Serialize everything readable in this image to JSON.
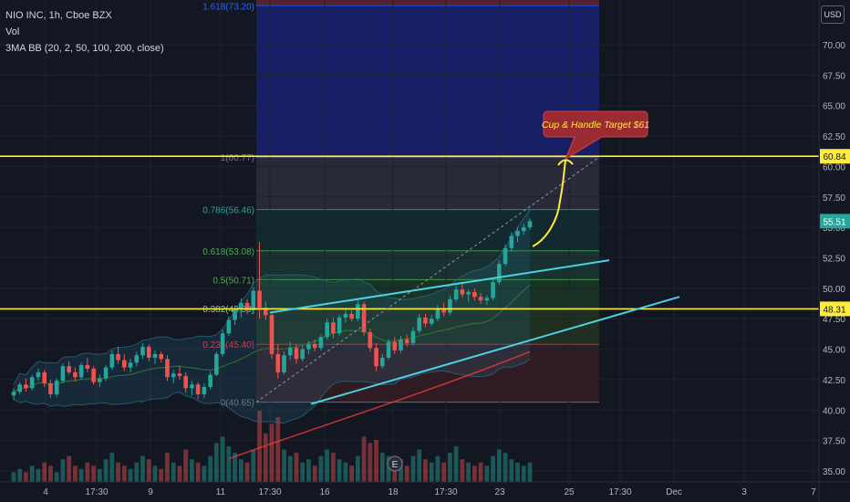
{
  "chart_data": {
    "type": "candlestick",
    "title": "NIO INC, 1h, Cboe BZX",
    "indicators": [
      "Vol",
      "3MA BB (20, 2, 50, 100, 200, close)"
    ],
    "currency": "USD",
    "y_axis": {
      "range": [
        35.0,
        72.5
      ],
      "ticks": [
        "70.00",
        "67.50",
        "65.00",
        "62.50",
        "60.00",
        "57.50",
        "55.00",
        "52.50",
        "50.00",
        "47.50",
        "45.00",
        "42.50",
        "40.00",
        "37.50",
        "35.00"
      ]
    },
    "x_axis": {
      "ticks": [
        "4",
        "17:30",
        "9",
        "11",
        "17:30",
        "16",
        "18",
        "17:30",
        "23",
        "25",
        "17:30",
        "Dec",
        "3",
        "7"
      ]
    },
    "price_marks": [
      {
        "label": "60.84",
        "value": 60.84,
        "style": "yellow"
      },
      {
        "label": "55.51",
        "value": 55.51,
        "style": "current"
      },
      {
        "label": "48.31",
        "value": 48.31,
        "style": "yellow"
      }
    ],
    "horizontal_lines": [
      60.84,
      48.31
    ],
    "fibonacci": {
      "from": 40.65,
      "to": 60.77,
      "levels": [
        {
          "ratio": "1.618",
          "value": 73.2,
          "label": "1.618(73.20)",
          "color": "#2962ff"
        },
        {
          "ratio": "1",
          "value": 60.77,
          "label": "1(60.77)",
          "color": "#787b86"
        },
        {
          "ratio": "0.786",
          "value": 56.46,
          "label": "0.786(56.46)",
          "color": "#26a69a"
        },
        {
          "ratio": "0.618",
          "value": 53.08,
          "label": "0.618(53.08)",
          "color": "#4caf50"
        },
        {
          "ratio": "0.5",
          "value": 50.71,
          "label": "0.5(50.71)",
          "color": "#4caf50"
        },
        {
          "ratio": "0.382",
          "value": 48.33,
          "label": "0.382(48.33)",
          "color": "#81c784"
        },
        {
          "ratio": "0.236",
          "value": 45.4,
          "label": "0.236(45.40)",
          "color": "#f23645"
        },
        {
          "ratio": "0",
          "value": 40.65,
          "label": "0(40.65)",
          "color": "#787b86"
        }
      ]
    },
    "trend_channel": {
      "upper": [
        [
          48.0,
          0
        ],
        [
          52.3,
          1
        ]
      ],
      "lower": [
        [
          40.5,
          0
        ],
        [
          49.3,
          1
        ]
      ]
    },
    "annotation": {
      "text": "Cup & Handle Target $61",
      "target": 61.0
    },
    "earnings_marker": "E",
    "candles": [
      [
        41.2,
        41.8,
        40.8,
        41.5
      ],
      [
        41.5,
        42.3,
        41.3,
        42.1
      ],
      [
        42.1,
        42.6,
        41.5,
        41.8
      ],
      [
        41.8,
        42.9,
        41.6,
        42.7
      ],
      [
        42.7,
        43.4,
        42.4,
        43.1
      ],
      [
        43.1,
        43.3,
        41.9,
        42.2
      ],
      [
        42.2,
        42.5,
        41.0,
        41.3
      ],
      [
        41.3,
        42.6,
        41.1,
        42.4
      ],
      [
        42.4,
        43.8,
        42.2,
        43.6
      ],
      [
        43.6,
        44.0,
        42.9,
        43.1
      ],
      [
        43.1,
        43.5,
        42.4,
        42.7
      ],
      [
        42.7,
        43.9,
        42.5,
        43.7
      ],
      [
        43.7,
        44.3,
        43.1,
        43.4
      ],
      [
        43.4,
        43.6,
        42.1,
        42.3
      ],
      [
        42.3,
        42.9,
        41.9,
        42.6
      ],
      [
        42.6,
        43.7,
        42.4,
        43.5
      ],
      [
        43.5,
        44.9,
        43.3,
        44.6
      ],
      [
        44.6,
        45.2,
        43.8,
        44.1
      ],
      [
        44.1,
        44.6,
        43.2,
        43.5
      ],
      [
        43.5,
        44.2,
        43.1,
        43.9
      ],
      [
        43.9,
        44.8,
        43.6,
        44.5
      ],
      [
        44.5,
        45.5,
        44.2,
        45.2
      ],
      [
        45.2,
        45.4,
        44.0,
        44.3
      ],
      [
        44.3,
        44.9,
        43.8,
        44.6
      ],
      [
        44.6,
        44.8,
        43.9,
        44.2
      ],
      [
        44.2,
        44.5,
        42.4,
        42.7
      ],
      [
        42.7,
        43.3,
        42.2,
        43.0
      ],
      [
        43.0,
        43.6,
        42.5,
        42.8
      ],
      [
        42.8,
        43.1,
        41.4,
        41.8
      ],
      [
        41.8,
        42.4,
        41.2,
        42.1
      ],
      [
        42.1,
        42.3,
        40.9,
        41.3
      ],
      [
        41.3,
        42.2,
        41.0,
        41.9
      ],
      [
        41.9,
        43.2,
        41.7,
        42.9
      ],
      [
        42.9,
        44.8,
        42.8,
        44.6
      ],
      [
        44.6,
        46.6,
        44.4,
        46.3
      ],
      [
        46.3,
        47.7,
        46.1,
        47.4
      ],
      [
        47.4,
        48.6,
        47.0,
        48.3
      ],
      [
        48.3,
        49.2,
        47.6,
        48.8
      ],
      [
        48.8,
        49.1,
        47.9,
        48.2
      ],
      [
        48.2,
        50.1,
        47.9,
        49.8
      ],
      [
        49.8,
        53.8,
        47.5,
        48.4
      ],
      [
        48.4,
        48.9,
        47.4,
        47.8
      ],
      [
        47.8,
        48.1,
        44.2,
        44.6
      ],
      [
        44.6,
        45.4,
        42.6,
        43.1
      ],
      [
        43.1,
        44.8,
        42.9,
        44.5
      ],
      [
        44.5,
        45.6,
        44.1,
        45.1
      ],
      [
        45.1,
        45.4,
        43.8,
        44.2
      ],
      [
        44.2,
        45.3,
        44.0,
        45.0
      ],
      [
        45.0,
        45.7,
        44.6,
        45.4
      ],
      [
        45.4,
        45.8,
        44.8,
        45.1
      ],
      [
        45.1,
        46.2,
        44.9,
        46.0
      ],
      [
        46.0,
        47.5,
        45.8,
        47.2
      ],
      [
        47.2,
        47.6,
        45.9,
        46.3
      ],
      [
        46.3,
        47.8,
        46.1,
        47.6
      ],
      [
        47.6,
        48.4,
        47.2,
        47.9
      ],
      [
        47.9,
        48.2,
        47.3,
        47.5
      ],
      [
        47.5,
        49.0,
        47.3,
        48.7
      ],
      [
        48.7,
        48.9,
        46.1,
        46.4
      ],
      [
        46.4,
        46.7,
        44.8,
        45.1
      ],
      [
        45.1,
        45.5,
        43.2,
        43.6
      ],
      [
        43.6,
        44.6,
        43.4,
        44.3
      ],
      [
        44.3,
        45.8,
        44.1,
        45.6
      ],
      [
        45.6,
        46.0,
        44.6,
        44.9
      ],
      [
        44.9,
        46.1,
        44.7,
        45.8
      ],
      [
        45.8,
        46.2,
        45.2,
        45.5
      ],
      [
        45.5,
        46.8,
        45.3,
        46.5
      ],
      [
        46.5,
        47.9,
        46.3,
        47.6
      ],
      [
        47.6,
        47.9,
        46.8,
        47.1
      ],
      [
        47.1,
        47.8,
        46.9,
        47.5
      ],
      [
        47.5,
        48.6,
        47.3,
        48.3
      ],
      [
        48.3,
        48.8,
        47.7,
        48.0
      ],
      [
        48.0,
        49.4,
        47.8,
        49.1
      ],
      [
        49.1,
        50.2,
        48.9,
        49.9
      ],
      [
        49.9,
        50.4,
        49.2,
        49.5
      ],
      [
        49.5,
        49.9,
        48.9,
        49.7
      ],
      [
        49.7,
        50.0,
        49.0,
        49.3
      ],
      [
        49.3,
        49.6,
        48.7,
        49.0
      ],
      [
        49.0,
        49.4,
        48.6,
        49.2
      ],
      [
        49.2,
        50.8,
        49.0,
        50.5
      ],
      [
        50.5,
        52.3,
        50.3,
        52.0
      ],
      [
        52.0,
        53.6,
        51.8,
        53.3
      ],
      [
        53.3,
        54.6,
        53.0,
        54.3
      ],
      [
        54.3,
        55.0,
        53.8,
        54.7
      ],
      [
        54.7,
        55.3,
        54.4,
        55.0
      ],
      [
        55.0,
        55.7,
        54.8,
        55.51
      ]
    ],
    "volume": [
      3,
      4,
      3,
      5,
      4,
      6,
      5,
      3,
      7,
      8,
      5,
      4,
      6,
      5,
      4,
      7,
      9,
      6,
      5,
      4,
      6,
      8,
      7,
      5,
      4,
      9,
      6,
      5,
      10,
      7,
      6,
      5,
      8,
      12,
      14,
      11,
      9,
      7,
      6,
      10,
      22,
      15,
      18,
      20,
      10,
      8,
      9,
      6,
      7,
      5,
      8,
      10,
      9,
      7,
      6,
      5,
      8,
      14,
      12,
      13,
      9,
      8,
      6,
      7,
      5,
      8,
      10,
      7,
      6,
      8,
      6,
      9,
      11,
      7,
      6,
      5,
      6,
      5,
      8,
      10,
      9,
      7,
      6,
      5,
      6
    ]
  }
}
